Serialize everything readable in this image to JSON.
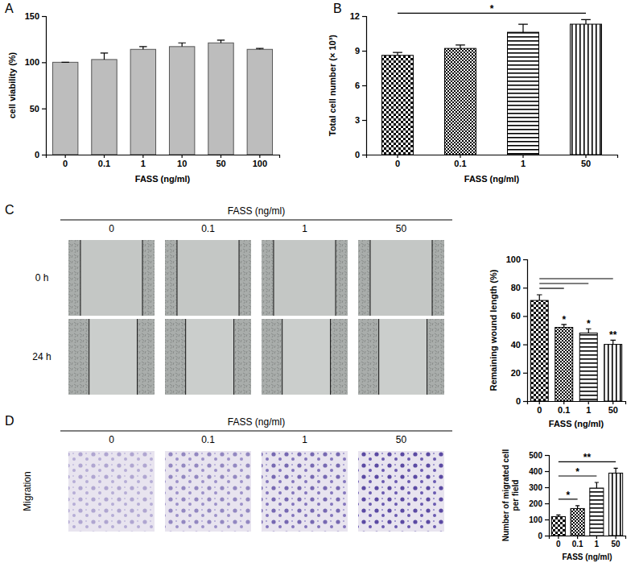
{
  "chart_data": [
    {
      "type": "bar",
      "title": "A",
      "categories": [
        "0",
        "0.1",
        "1",
        "10",
        "50",
        "100"
      ],
      "values": [
        100,
        103,
        114,
        117,
        121,
        114
      ],
      "errors": [
        0,
        7,
        3,
        4,
        3,
        1
      ],
      "x_label": "FASS (ng/ml)",
      "y_label": "cell viability (%)",
      "ylim": [
        0,
        150
      ],
      "yticks": [
        0,
        50,
        100,
        150
      ],
      "color": "#bdbdbd"
    },
    {
      "type": "bar",
      "title": "B",
      "categories": [
        "0",
        "0.1",
        "1",
        "50"
      ],
      "values": [
        8.6,
        9.2,
        10.6,
        11.3
      ],
      "errors": [
        0.25,
        0.3,
        0.7,
        0.4
      ],
      "x_label": "FASS (ng/ml)",
      "y_label": "Total cell number (× 10³)",
      "ylim": [
        0,
        12
      ],
      "yticks": [
        0,
        3,
        6,
        9,
        12
      ],
      "color": "#000000",
      "comparisons": [
        {
          "from": "0",
          "to": "50",
          "label": "*"
        }
      ]
    },
    {
      "type": "bar",
      "categories": [
        "0",
        "0.1",
        "1",
        "50"
      ],
      "values": [
        71,
        52,
        48,
        40
      ],
      "errors": [
        4,
        2,
        3,
        3
      ],
      "x_label": "FASS (ng/ml)",
      "y_label": "Remaining wound length (%)",
      "ylim": [
        0,
        100
      ],
      "yticks": [
        0,
        20,
        40,
        60,
        80,
        100
      ],
      "color": "#000000",
      "significance": [
        null,
        "*",
        "*",
        "**"
      ],
      "comparisons": [
        {
          "from": "0",
          "to": "0.1"
        },
        {
          "from": "0",
          "to": "1"
        },
        {
          "from": "0",
          "to": "50"
        }
      ]
    },
    {
      "type": "bar",
      "categories": [
        "0",
        "0.1",
        "1",
        "50"
      ],
      "values": [
        118,
        168,
        295,
        388
      ],
      "errors": [
        10,
        18,
        35,
        30
      ],
      "x_label": "FASS (ng/ml)",
      "y_label": [
        "Number of migrated cell",
        "per field"
      ],
      "ylim": [
        0,
        500
      ],
      "yticks": [
        0,
        100,
        200,
        300,
        400,
        500
      ],
      "color": "#000000",
      "comparisons": [
        {
          "from": "0",
          "to": "0.1",
          "label": "*"
        },
        {
          "from": "0",
          "to": "1",
          "label": "*"
        },
        {
          "from": "0",
          "to": "50",
          "label": "**"
        }
      ]
    }
  ],
  "image_panels": [
    {
      "label": "C",
      "header": "FASS (ng/ml)",
      "columns": [
        "0",
        "0.1",
        "1",
        "50"
      ],
      "rows": [
        "0 h",
        "24 h"
      ]
    },
    {
      "label": "D",
      "header": "FASS (ng/ml)",
      "columns": [
        "0",
        "0.1",
        "1",
        "50"
      ],
      "rows": [
        "Migration"
      ]
    }
  ]
}
